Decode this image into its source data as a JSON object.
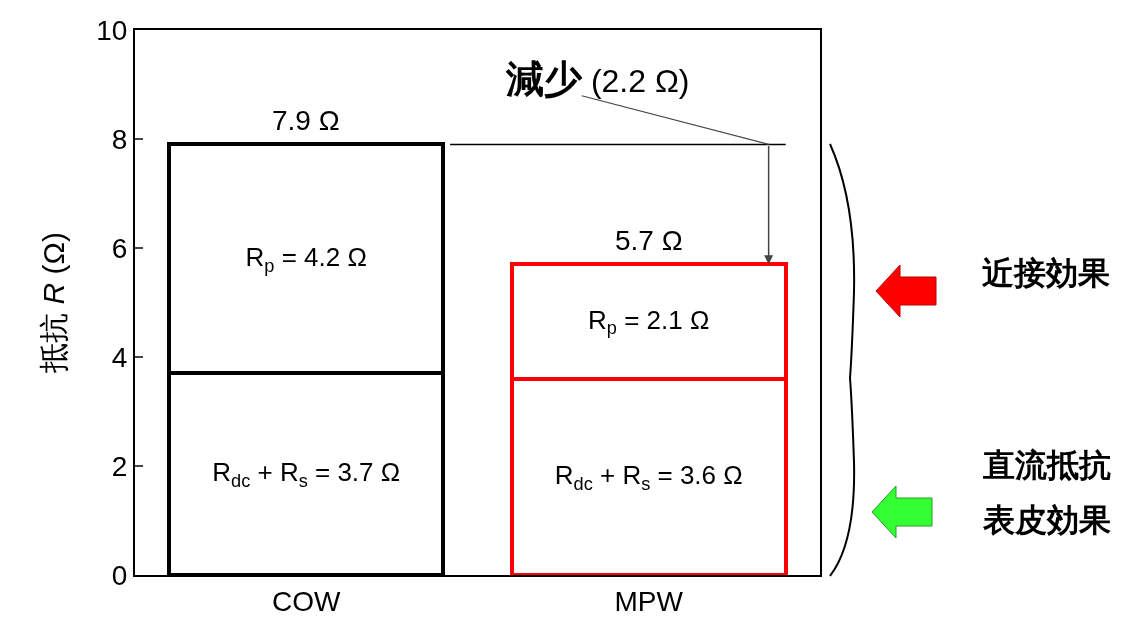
{
  "chart_data": {
    "type": "bar",
    "stacked": true,
    "categories": [
      "COW",
      "MPW"
    ],
    "series": [
      {
        "colors": [
          "#000000",
          "#ff0000"
        ],
        "values": [
          3.7,
          3.6
        ],
        "value_labels": [
          "R$_{dc}$ + R$_{s}$ = 3.7 Ω",
          "R$_{dc}$ + R$_{s}$ = 3.6 Ω"
        ]
      },
      {
        "colors": [
          "#000000",
          "#ff0000"
        ],
        "values": [
          4.2,
          2.1
        ],
        "value_labels": [
          "R$_{p}$ = 4.2 Ω",
          "R$_{p}$ = 2.1 Ω"
        ]
      }
    ],
    "totals": [
      "7.9 Ω",
      "5.7 Ω"
    ],
    "ylabel": "抵抗 R (Ω)",
    "ylim": [
      0,
      10
    ],
    "yticks": [
      0,
      2,
      4,
      6,
      8,
      10
    ],
    "grid": false,
    "legend": false,
    "ref_lines": [
      {
        "axis": "y",
        "value": 7.9,
        "color": "#000000"
      }
    ],
    "annotations": [
      {
        "text": "減少 (2.2 Ω)",
        "x": "MPW",
        "y": 7.9
      },
      "近接効果",
      "直流抵抗",
      "表皮効果"
    ]
  }
}
